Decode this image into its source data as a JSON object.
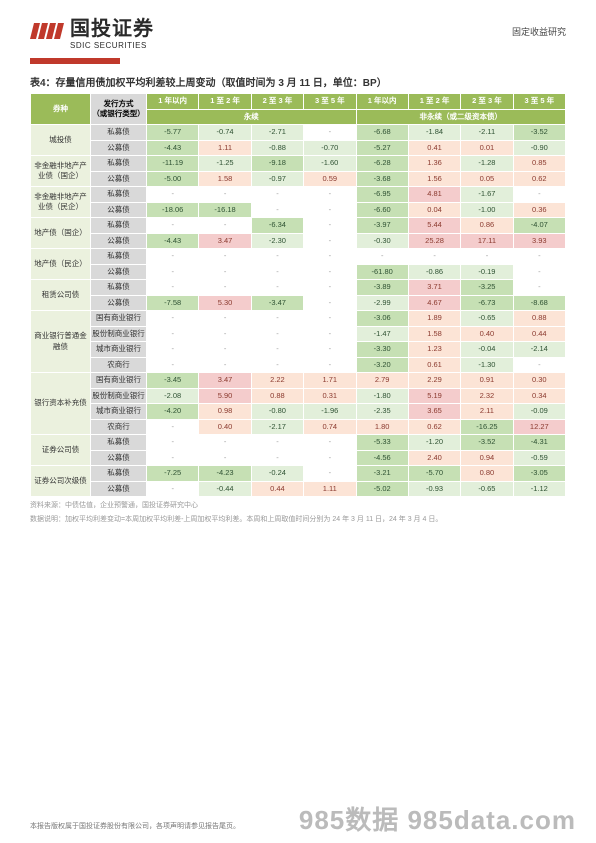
{
  "header": {
    "logo_cn": "国投证券",
    "logo_en": "SDIC SECURITIES",
    "right_text": "固定收益研究"
  },
  "table": {
    "title": "表4：存量信用债加权平均利差较上周变动（取值时间为 3 月 11 日，单位：BP）",
    "col_bond_type": "券种",
    "col_issue_type": "发行方式\n（或银行类型）",
    "group1": "永续",
    "group2": "非永续（或二级资本债）",
    "tenor1": "1 年以内",
    "tenor2": "1 至 2 年",
    "tenor3": "2 至 3 年",
    "tenor4": "3 至 5 年",
    "tenor5": "1 年以内",
    "tenor6": "1 至 2 年",
    "tenor7": "2 至 3 年",
    "tenor8": "3 至 5 年",
    "rows": [
      {
        "cat": "城投债",
        "sub": "私募债",
        "v": [
          "-5.77",
          "-0.74",
          "-2.71",
          "-",
          "-6.68",
          "-1.84",
          "-2.11",
          "-3.52"
        ]
      },
      {
        "cat": "",
        "sub": "公募债",
        "v": [
          "-4.43",
          "1.11",
          "-0.88",
          "-0.70",
          "-5.27",
          "0.41",
          "0.01",
          "-0.90"
        ]
      },
      {
        "cat": "非金融非地产产\n业债（国企）",
        "sub": "私募债",
        "v": [
          "-11.19",
          "-1.25",
          "-9.18",
          "-1.60",
          "-6.28",
          "1.36",
          "-1.28",
          "0.85"
        ]
      },
      {
        "cat": "",
        "sub": "公募债",
        "v": [
          "-5.00",
          "1.58",
          "-0.97",
          "0.59",
          "-3.68",
          "1.56",
          "0.05",
          "0.62"
        ]
      },
      {
        "cat": "非金融非地产产\n业债（民企）",
        "sub": "私募债",
        "v": [
          "-",
          "-",
          "-",
          "-",
          "-6.95",
          "4.81",
          "-1.67",
          "-"
        ]
      },
      {
        "cat": "",
        "sub": "公募债",
        "v": [
          "-18.06",
          "-16.18",
          "-",
          "-",
          "-6.60",
          "0.04",
          "-1.00",
          "0.36"
        ]
      },
      {
        "cat": "地产债（国企）",
        "sub": "私募债",
        "v": [
          "-",
          "-",
          "-6.34",
          "-",
          "-3.97",
          "5.44",
          "0.86",
          "-4.07"
        ]
      },
      {
        "cat": "",
        "sub": "公募债",
        "v": [
          "-4.43",
          "3.47",
          "-2.30",
          "-",
          "-0.30",
          "25.28",
          "17.11",
          "3.93"
        ]
      },
      {
        "cat": "地产债（民企）",
        "sub": "私募债",
        "v": [
          "-",
          "-",
          "-",
          "-",
          "-",
          "-",
          "-",
          "-"
        ]
      },
      {
        "cat": "",
        "sub": "公募债",
        "v": [
          "-",
          "-",
          "-",
          "-",
          "-61.80",
          "-0.86",
          "-0.19",
          "-"
        ]
      },
      {
        "cat": "租赁公司债",
        "sub": "私募债",
        "v": [
          "-",
          "-",
          "-",
          "-",
          "-3.89",
          "3.71",
          "-3.25",
          "-"
        ]
      },
      {
        "cat": "",
        "sub": "公募债",
        "v": [
          "-7.58",
          "5.30",
          "-3.47",
          "-",
          "-2.99",
          "4.67",
          "-6.73",
          "-8.68"
        ]
      },
      {
        "cat": "商业银行普通金\n融债",
        "sub": "国有商业银行",
        "v": [
          "-",
          "-",
          "-",
          "-",
          "-3.06",
          "1.89",
          "-0.65",
          "0.88"
        ]
      },
      {
        "cat": "",
        "sub": "股份制商业银行",
        "v": [
          "-",
          "-",
          "-",
          "-",
          "-1.47",
          "1.58",
          "0.40",
          "0.44"
        ]
      },
      {
        "cat": "",
        "sub": "城市商业银行",
        "v": [
          "-",
          "-",
          "-",
          "-",
          "-3.30",
          "1.23",
          "-0.04",
          "-2.14"
        ]
      },
      {
        "cat": "",
        "sub": "农商行",
        "v": [
          "-",
          "-",
          "-",
          "-",
          "-3.20",
          "0.61",
          "-1.30",
          "-"
        ]
      },
      {
        "cat": "银行资本补充债",
        "sub": "国有商业银行",
        "v": [
          "-3.45",
          "3.47",
          "2.22",
          "1.71",
          "2.79",
          "2.29",
          "0.91",
          "0.30"
        ]
      },
      {
        "cat": "",
        "sub": "股份制商业银行",
        "v": [
          "-2.08",
          "5.90",
          "0.88",
          "0.31",
          "-1.80",
          "5.19",
          "2.32",
          "0.34"
        ]
      },
      {
        "cat": "",
        "sub": "城市商业银行",
        "v": [
          "-4.20",
          "0.98",
          "-0.80",
          "-1.96",
          "-2.35",
          "3.65",
          "2.11",
          "-0.09"
        ]
      },
      {
        "cat": "",
        "sub": "农商行",
        "v": [
          "-",
          "0.40",
          "-2.17",
          "0.74",
          "1.80",
          "0.62",
          "-16.25",
          "12.27"
        ]
      },
      {
        "cat": "证券公司债",
        "sub": "私募债",
        "v": [
          "-",
          "-",
          "-",
          "-",
          "-5.33",
          "-1.20",
          "-3.52",
          "-4.31"
        ]
      },
      {
        "cat": "",
        "sub": "公募债",
        "v": [
          "-",
          "-",
          "-",
          "-",
          "-4.56",
          "2.40",
          "0.94",
          "-0.59"
        ]
      },
      {
        "cat": "证券公司次级债",
        "sub": "私募债",
        "v": [
          "-7.25",
          "-4.23",
          "-0.24",
          "-",
          "-3.21",
          "-5.70",
          "0.80",
          "-3.05"
        ]
      },
      {
        "cat": "",
        "sub": "公募债",
        "v": [
          "-",
          "-0.44",
          "0.44",
          "1.11",
          "-5.02",
          "-0.93",
          "-0.65",
          "-1.12"
        ]
      }
    ],
    "colors": {
      "pos_strong": "#f4cccc",
      "pos_weak": "#fce4d6",
      "neg_strong": "#c6e0b4",
      "neg_weak": "#e2efda",
      "neutral": "#ffffff"
    },
    "notes1": "资料来源：中债估值，企业预警通，国投证券研究中心",
    "notes2": "数据说明：加权平均利差变动=本周加权平均利差-上周加权平均利差。本周和上周取值时间分别为 24 年 3 月 11 日，24 年 3 月 4 日。"
  },
  "footer": {
    "left": "本报告版权属于国投证券股份有限公司，各项声明请参见报告尾页。",
    "watermark": "985数据 985data.com"
  }
}
